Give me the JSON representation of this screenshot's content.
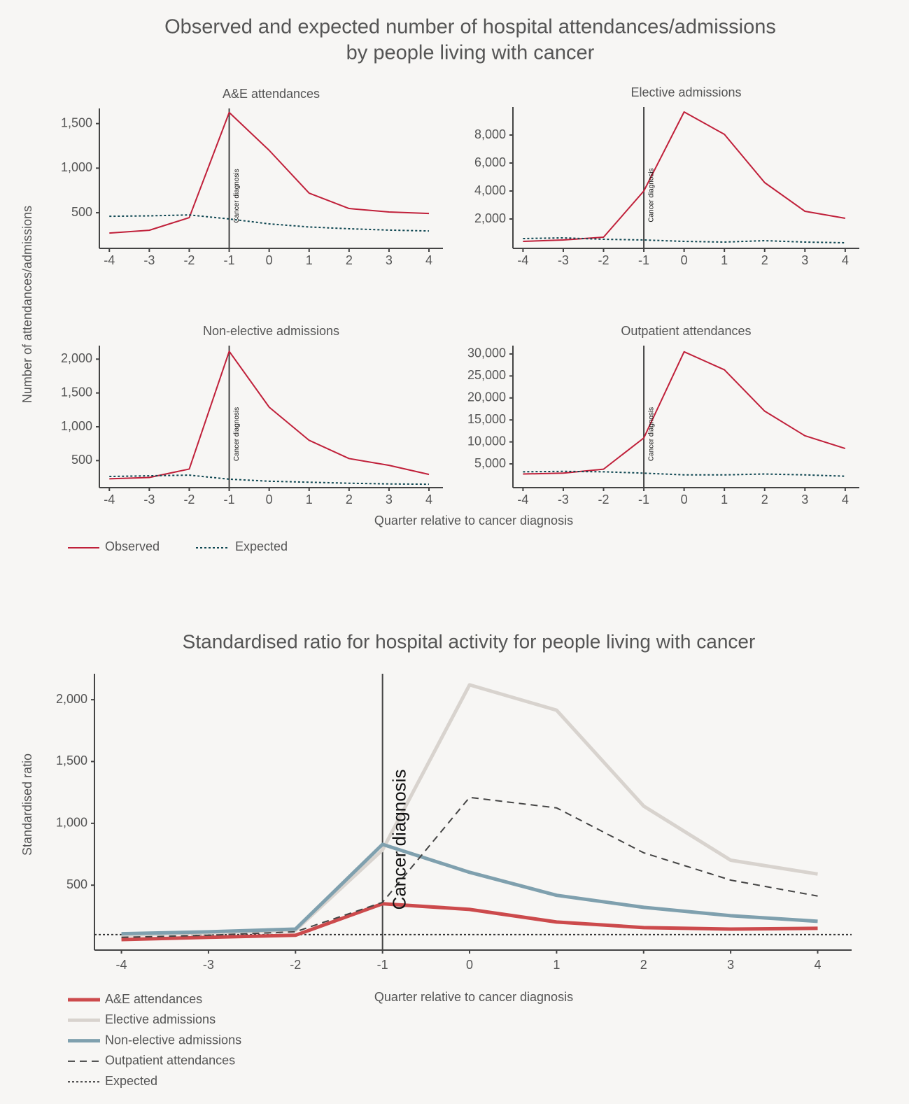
{
  "figure_1": {
    "title": [
      "Observed and expected number of hospital attendances/admissions",
      "by people living with cancer"
    ],
    "y_label": "Number of attendances/admissions",
    "x_label": "Quarter relative to cancer diagnosis"
  },
  "chart_data": [
    {
      "type": "line",
      "title": "A&E attendances",
      "x": [
        -4,
        -3,
        -2,
        -1,
        0,
        1,
        2,
        3,
        4
      ],
      "xlim": [
        -4.25,
        4.35
      ],
      "xticks": [
        -4,
        -3,
        -2,
        -1,
        0,
        1,
        2,
        3,
        4
      ],
      "ylim": [
        100,
        1670
      ],
      "yticks": [
        500,
        {
          "value": 1000,
          "label": "1,000"
        },
        {
          "value": 1500,
          "label": "1,500"
        }
      ],
      "annotation": {
        "x": -1,
        "label": "Cancer diagnosis"
      },
      "series": [
        {
          "name": "Observed",
          "color": "#c0203a",
          "dash": "solid",
          "values": [
            272,
            303,
            445,
            1625,
            1200,
            720,
            547,
            508,
            492
          ]
        },
        {
          "name": "Expected",
          "color": "#0f4752",
          "dash": "dotted",
          "values": [
            460,
            465,
            475,
            430,
            375,
            340,
            320,
            305,
            295
          ]
        }
      ]
    },
    {
      "type": "line",
      "title": "Elective admissions",
      "x": [
        -4,
        -3,
        -2,
        -1,
        0,
        1,
        2,
        3,
        4
      ],
      "xlim": [
        -4.25,
        4.35
      ],
      "xticks": [
        -4,
        -3,
        -2,
        -1,
        0,
        1,
        2,
        3,
        4
      ],
      "ylim": [
        -100,
        10000
      ],
      "yticks": [
        {
          "value": 2000,
          "label": "2,000"
        },
        {
          "value": 4000,
          "label": "4,000"
        },
        {
          "value": 6000,
          "label": "6,000"
        },
        {
          "value": 8000,
          "label": "8,000"
        }
      ],
      "annotation": {
        "x": -1,
        "label": "Cancer diagnosis"
      },
      "series": [
        {
          "name": "Observed",
          "color": "#c0203a",
          "dash": "solid",
          "values": [
            400,
            500,
            700,
            4000,
            9650,
            8050,
            4600,
            2550,
            2050
          ]
        },
        {
          "name": "Expected",
          "color": "#0f4752",
          "dash": "dotted",
          "values": [
            600,
            650,
            550,
            500,
            400,
            350,
            450,
            350,
            300
          ]
        }
      ]
    },
    {
      "type": "line",
      "title": "Non-elective admissions",
      "x": [
        -4,
        -3,
        -2,
        -1,
        0,
        1,
        2,
        3,
        4
      ],
      "xlim": [
        -4.25,
        4.35
      ],
      "xticks": [
        -4,
        -3,
        -2,
        -1,
        0,
        1,
        2,
        3,
        4
      ],
      "ylim": [
        100,
        2200
      ],
      "yticks": [
        500,
        {
          "value": 1000,
          "label": "1,000"
        },
        {
          "value": 1500,
          "label": "1,500"
        },
        {
          "value": 2000,
          "label": "2,000"
        }
      ],
      "annotation": {
        "x": -1,
        "label": "Cancer diagnosis"
      },
      "series": [
        {
          "name": "Observed",
          "color": "#c0203a",
          "dash": "solid",
          "values": [
            230,
            250,
            375,
            2115,
            1290,
            800,
            530,
            430,
            295
          ]
        },
        {
          "name": "Expected",
          "color": "#0f4752",
          "dash": "dotted",
          "values": [
            265,
            275,
            285,
            225,
            195,
            180,
            165,
            155,
            150
          ]
        }
      ]
    },
    {
      "type": "line",
      "title": "Outpatient attendances",
      "x": [
        -4,
        -3,
        -2,
        -1,
        0,
        1,
        2,
        3,
        4
      ],
      "xlim": [
        -4.25,
        4.35
      ],
      "xticks": [
        -4,
        -3,
        -2,
        -1,
        0,
        1,
        2,
        3,
        4
      ],
      "ylim": [
        -400,
        31900
      ],
      "yticks": [
        {
          "value": 5000,
          "label": "5,000"
        },
        {
          "value": 10000,
          "label": "10,000"
        },
        {
          "value": 15000,
          "label": "15,000"
        },
        {
          "value": 20000,
          "label": "20,000"
        },
        {
          "value": 25000,
          "label": "25,000"
        },
        {
          "value": 30000,
          "label": "30,000"
        }
      ],
      "annotation": {
        "x": -1,
        "label": "Cancer diagnosis"
      },
      "series": [
        {
          "name": "Observed",
          "color": "#c0203a",
          "dash": "solid",
          "values": [
            2700,
            2900,
            3800,
            10900,
            30500,
            26400,
            17000,
            11400,
            8500
          ]
        },
        {
          "name": "Expected",
          "color": "#0f4752",
          "dash": "dotted",
          "values": [
            3200,
            3300,
            3200,
            2900,
            2500,
            2500,
            2700,
            2500,
            2200
          ]
        }
      ]
    },
    {
      "type": "line",
      "title": "Standardised ratio for hospital activity for people living with cancer",
      "y_label": "Standardised ratio",
      "x_label": "Quarter relative to cancer diagnosis",
      "x": [
        -4,
        -3,
        -2,
        -1,
        0,
        1,
        2,
        3,
        4
      ],
      "xlim": [
        -4.31,
        4.39
      ],
      "xticks": [
        -4,
        -3,
        -2,
        -1,
        0,
        1,
        2,
        3,
        4
      ],
      "ylim": [
        -25,
        2210
      ],
      "yticks": [
        500,
        {
          "value": 1000,
          "label": "1,000"
        },
        {
          "value": 1500,
          "label": "1,500"
        },
        {
          "value": 2000,
          "label": "2,000"
        }
      ],
      "annotation": {
        "x": -1,
        "label": "Cancer diagnosis"
      },
      "series": [
        {
          "name": "A&E attendances",
          "color": "#cc4a4c",
          "dash": "solid",
          "width": 5,
          "values": [
            60,
            78,
            95,
            350,
            304,
            202,
            157,
            145,
            151
          ]
        },
        {
          "name": "Elective admissions",
          "color": "#d8d3ce",
          "dash": "solid",
          "width": 5,
          "values": [
            95,
            115,
            135,
            785,
            2120,
            1915,
            1140,
            702,
            590
          ]
        },
        {
          "name": "Non-elective admissions",
          "color": "#7fa0ae",
          "dash": "solid",
          "width": 5,
          "values": [
            107,
            123,
            145,
            830,
            604,
            418,
            321,
            253,
            208
          ]
        },
        {
          "name": "Outpatient attendances",
          "color": "#444444",
          "dash": "dashed",
          "width": 2,
          "values": [
            78,
            95,
            123,
            361,
            1210,
            1125,
            762,
            541,
            412
          ]
        }
      ],
      "reference_line": {
        "name": "Expected",
        "value": 100,
        "color": "#333333",
        "dash": "dotted"
      }
    }
  ]
}
